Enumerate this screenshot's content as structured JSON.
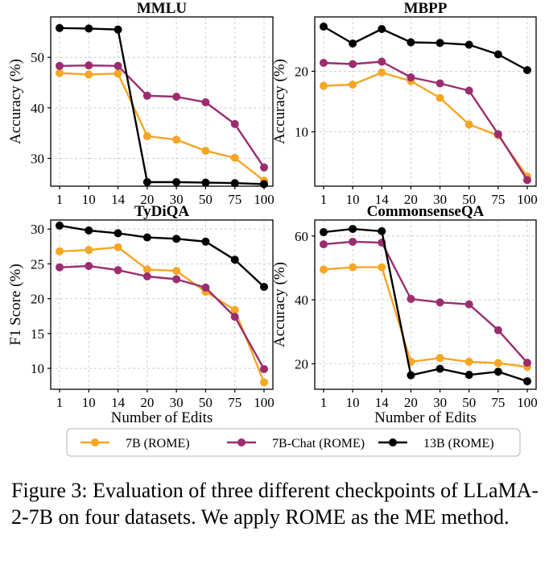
{
  "figure": {
    "caption": "Figure 3: Evaluation of three different checkpoints of LLaMA-2-7B on four datasets. We apply ROME as the ME method.",
    "legend": [
      "7B (ROME)",
      "7B-Chat (ROME)",
      "13B (ROME)"
    ],
    "colors": {
      "7B (ROME)": "#f5a623",
      "7B-Chat (ROME)": "#9b2d6f",
      "13B (ROME)": "#000000"
    }
  },
  "chart_data": [
    {
      "type": "line",
      "title": "MMLU",
      "xlabel": "",
      "ylabel": "Accuracy (%)",
      "categories": [
        "1",
        "10",
        "14",
        "20",
        "30",
        "50",
        "75",
        "100"
      ],
      "ylim": [
        24.5,
        58
      ],
      "yticks": [
        30,
        40,
        50
      ],
      "grid": true,
      "series": [
        {
          "name": "7B (ROME)",
          "values": [
            46.9,
            46.6,
            46.8,
            34.4,
            33.7,
            31.5,
            30.1,
            25.6
          ]
        },
        {
          "name": "7B-Chat (ROME)",
          "values": [
            48.3,
            48.4,
            48.3,
            42.4,
            42.2,
            41.1,
            36.8,
            28.2
          ]
        },
        {
          "name": "13B (ROME)",
          "values": [
            55.8,
            55.7,
            55.5,
            25.3,
            25.3,
            25.2,
            25.1,
            24.9
          ]
        }
      ]
    },
    {
      "type": "line",
      "title": "MBPP",
      "xlabel": "",
      "ylabel": "Accuracy (%)",
      "categories": [
        "1",
        "10",
        "14",
        "20",
        "30",
        "50",
        "75",
        "100"
      ],
      "ylim": [
        1,
        29
      ],
      "yticks": [
        10,
        20
      ],
      "grid": true,
      "series": [
        {
          "name": "7B (ROME)",
          "values": [
            17.6,
            17.8,
            19.8,
            18.4,
            15.6,
            11.2,
            9.4,
            2.6
          ]
        },
        {
          "name": "7B-Chat (ROME)",
          "values": [
            21.4,
            21.2,
            21.6,
            19.0,
            18.0,
            16.8,
            9.6,
            2.0
          ]
        },
        {
          "name": "13B (ROME)",
          "values": [
            27.4,
            24.6,
            27.0,
            24.8,
            24.7,
            24.4,
            22.8,
            20.2
          ]
        }
      ]
    },
    {
      "type": "line",
      "title": "TyDiQA",
      "xlabel": "Number of Edits",
      "ylabel": "F1 Score (%)",
      "categories": [
        "1",
        "10",
        "14",
        "20",
        "30",
        "50",
        "75",
        "100"
      ],
      "ylim": [
        7,
        31.3
      ],
      "yticks": [
        10,
        15,
        20,
        25,
        30
      ],
      "grid": true,
      "series": [
        {
          "name": "7B (ROME)",
          "values": [
            26.8,
            27.0,
            27.4,
            24.2,
            24.0,
            21.0,
            18.4,
            8.0
          ]
        },
        {
          "name": "7B-Chat (ROME)",
          "values": [
            24.5,
            24.7,
            24.1,
            23.2,
            22.8,
            21.6,
            17.4,
            9.9
          ]
        },
        {
          "name": "13B (ROME)",
          "values": [
            30.5,
            29.8,
            29.4,
            28.8,
            28.6,
            28.2,
            25.6,
            21.7
          ]
        }
      ]
    },
    {
      "type": "line",
      "title": "CommonsenseQA",
      "xlabel": "Number of Edits",
      "ylabel": "Accuracy (%)",
      "categories": [
        "1",
        "10",
        "14",
        "20",
        "30",
        "50",
        "75",
        "100"
      ],
      "ylim": [
        12,
        65
      ],
      "yticks": [
        20,
        40,
        60
      ],
      "grid": true,
      "series": [
        {
          "name": "7B (ROME)",
          "values": [
            49.5,
            50.2,
            50.2,
            20.6,
            21.8,
            20.6,
            20.2,
            19.0
          ]
        },
        {
          "name": "7B-Chat (ROME)",
          "values": [
            57.4,
            58.2,
            57.9,
            40.3,
            39.2,
            38.6,
            30.5,
            20.3
          ]
        },
        {
          "name": "13B (ROME)",
          "values": [
            61.2,
            62.2,
            61.5,
            16.4,
            18.4,
            16.5,
            17.5,
            14.5
          ]
        }
      ]
    }
  ]
}
